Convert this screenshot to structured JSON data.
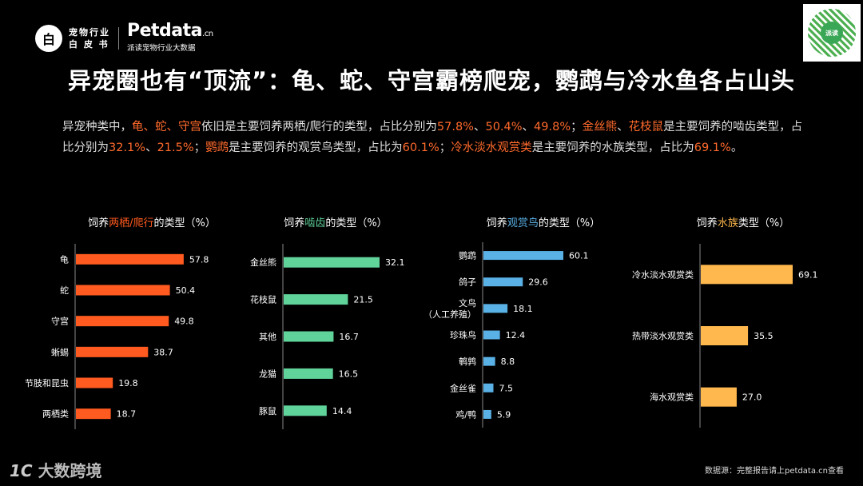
{
  "header": {
    "logo_glyph": "白",
    "logo_line1": "宠物行业",
    "logo_line2": "白 皮 书",
    "brand_main": "Petdata",
    "brand_suffix": ".cn",
    "brand_sub": "派读宠物行业大数据",
    "qr_label": "派读"
  },
  "title": "异宠圈也有“顶流”：龟、蛇、守宫霸榜爬宠，鹦鹉与冷水鱼各占山头",
  "summary": [
    {
      "t": "异宠种类中，",
      "h": false
    },
    {
      "t": "龟、蛇、守宫",
      "h": true
    },
    {
      "t": "依旧是主要饲养两栖/爬行的类型，占比分别为",
      "h": false
    },
    {
      "t": "57.8%",
      "h": true
    },
    {
      "t": "、",
      "h": false
    },
    {
      "t": "50.4%",
      "h": true
    },
    {
      "t": "、",
      "h": false
    },
    {
      "t": "49.8%",
      "h": true
    },
    {
      "t": "；",
      "h": false
    },
    {
      "t": "金丝熊",
      "h": true
    },
    {
      "t": "、",
      "h": false
    },
    {
      "t": "花枝鼠",
      "h": true
    },
    {
      "t": "是主要饲养的啮齿类型，占比分别为",
      "h": false
    },
    {
      "t": "32.1%",
      "h": true
    },
    {
      "t": "、",
      "h": false
    },
    {
      "t": "21.5%",
      "h": true
    },
    {
      "t": "；",
      "h": false
    },
    {
      "t": "鹦鹉",
      "h": true
    },
    {
      "t": "是主要饲养的观赏鸟类型，占比为",
      "h": false
    },
    {
      "t": "60.1%",
      "h": true
    },
    {
      "t": "；",
      "h": false
    },
    {
      "t": "冷水淡水观赏类",
      "h": true
    },
    {
      "t": "是主要饲养的水族类型，占比为",
      "h": false
    },
    {
      "t": "69.1%",
      "h": true
    },
    {
      "t": "。",
      "h": false
    }
  ],
  "chart_data": [
    {
      "type": "bar",
      "orientation": "horizontal",
      "title_pre": "饲养",
      "title_accent": "两栖/爬行",
      "title_post": "的类型（%）",
      "color": "#ff5a1f",
      "categories": [
        "龟",
        "蛇",
        "守宫",
        "蜥蜴",
        "节肢和昆虫",
        "两栖类"
      ],
      "values": [
        57.8,
        50.4,
        49.8,
        38.7,
        19.8,
        18.7
      ]
    },
    {
      "type": "bar",
      "orientation": "horizontal",
      "title_pre": "饲养",
      "title_accent": "啮齿",
      "title_post": "的类型（%）",
      "color": "#5fd39a",
      "categories": [
        "金丝熊",
        "花枝鼠",
        "其他",
        "龙猫",
        "豚鼠"
      ],
      "values": [
        32.1,
        21.5,
        16.7,
        16.5,
        14.4
      ]
    },
    {
      "type": "bar",
      "orientation": "horizontal",
      "title_pre": "饲养",
      "title_accent": "观赏鸟",
      "title_post": "的类型（%）",
      "color": "#5ab1e6",
      "categories": [
        "鹦鹉",
        "鸽子",
        "文鸟\n（人工养殖）",
        "珍珠鸟",
        "鹌鹑",
        "金丝雀",
        "鸡/鸭"
      ],
      "values": [
        60.1,
        29.6,
        18.1,
        12.4,
        8.8,
        7.5,
        5.9
      ]
    },
    {
      "type": "bar",
      "orientation": "horizontal",
      "title_pre": "饲养",
      "title_accent": "水族",
      "title_post": "类型（%）",
      "color": "#ffb84d",
      "categories": [
        "冷水淡水观赏类",
        "热带淡水观赏类",
        "海水观赏类"
      ],
      "values": [
        69.1,
        35.5,
        27.0
      ]
    }
  ],
  "footer": {
    "logo": "大数跨境",
    "logo_mark": "1C",
    "source": "数据源：完整报告请上petdata.cn查看"
  }
}
